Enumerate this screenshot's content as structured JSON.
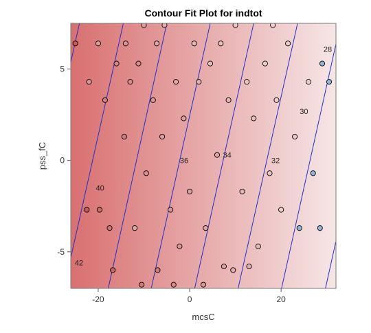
{
  "chart_data": {
    "type": "scatter",
    "subtype": "contour-fit",
    "title": "Contour Fit Plot for indtot",
    "xlabel": "mcsC",
    "ylabel": "pss_fC",
    "xlim": [
      -26,
      32
    ],
    "ylim": [
      -7,
      7.5
    ],
    "xticks": [
      -20,
      0,
      20
    ],
    "yticks": [
      -5,
      0,
      5
    ],
    "x_tick_labels": [
      "-20",
      "0",
      "20"
    ],
    "y_tick_labels": [
      "-5",
      "0",
      "5"
    ],
    "surface_gradient": {
      "low_color": "#d97070",
      "high_color": "#f6e6e6",
      "direction": "increasing mcsC"
    },
    "contour_color": "#1b2fd0",
    "contour_lines": [
      {
        "level": 42,
        "x_at_top": -24.1,
        "x_at_bottom": -37.0,
        "label": "42",
        "label_at": [
          -24.2,
          -5.6
        ]
      },
      {
        "level": 40,
        "x_at_top": -14.5,
        "x_at_bottom": -27.5,
        "label": "40",
        "label_at": [
          -19.6,
          -1.5
        ]
      },
      {
        "level": 38,
        "x_at_top": -5.0,
        "x_at_bottom": -17.8,
        "label": "",
        "label_at": null
      },
      {
        "level": 36,
        "x_at_top": 4.5,
        "x_at_bottom": -8.4,
        "label": "36",
        "label_at": [
          -1.2,
          0.0
        ]
      },
      {
        "level": 34,
        "x_at_top": 14.0,
        "x_at_bottom": 1.1,
        "label": "34",
        "label_at": [
          8.2,
          0.3
        ]
      },
      {
        "level": 32,
        "x_at_top": 23.6,
        "x_at_bottom": 10.6,
        "label": "32",
        "label_at": [
          18.8,
          0.0
        ]
      },
      {
        "level": 30,
        "x_at_top": 33.0,
        "x_at_bottom": 20.1,
        "label": "30",
        "label_at": [
          25.0,
          2.7
        ]
      },
      {
        "level": 28,
        "x_at_top": 42.6,
        "x_at_bottom": 29.7,
        "label": "28",
        "label_at": [
          30.2,
          6.1
        ]
      }
    ],
    "point_style": {
      "marker": "circle",
      "fill_colormap": "response",
      "stroke": "#000000"
    },
    "observations": [
      {
        "x": -22,
        "y": 4.3,
        "v": 37
      },
      {
        "x": -25,
        "y": 6.4,
        "v": 44
      },
      {
        "x": -22.5,
        "y": -2.7,
        "v": 44
      },
      {
        "x": -19.7,
        "y": -2.7,
        "v": 42
      },
      {
        "x": -18.5,
        "y": 3.3,
        "v": 40
      },
      {
        "x": -16,
        "y": 5.3,
        "v": 39
      },
      {
        "x": -14,
        "y": 6.4,
        "v": 37
      },
      {
        "x": -14.3,
        "y": 1.3,
        "v": 40
      },
      {
        "x": -13,
        "y": 4.3,
        "v": 38
      },
      {
        "x": -12,
        "y": -3.7,
        "v": 35
      },
      {
        "x": -11.2,
        "y": 5.3,
        "v": 38
      },
      {
        "x": -10,
        "y": 7.4,
        "v": 36
      },
      {
        "x": -9.5,
        "y": -0.7,
        "v": 38
      },
      {
        "x": -8,
        "y": 3.3,
        "v": 37
      },
      {
        "x": -7,
        "y": -6.0,
        "v": 40
      },
      {
        "x": -6,
        "y": 1.3,
        "v": 36
      },
      {
        "x": -5.5,
        "y": 7.4,
        "v": 34
      },
      {
        "x": -4.2,
        "y": -2.7,
        "v": 37
      },
      {
        "x": -3,
        "y": 4.3,
        "v": 35
      },
      {
        "x": -2.2,
        "y": -4.7,
        "v": 37
      },
      {
        "x": -1.3,
        "y": 2.3,
        "v": 36
      },
      {
        "x": 0,
        "y": -1.7,
        "v": 36
      },
      {
        "x": 1,
        "y": 6.4,
        "v": 33
      },
      {
        "x": 2,
        "y": 4.3,
        "v": 34
      },
      {
        "x": 3.5,
        "y": -3.7,
        "v": 35
      },
      {
        "x": 4.5,
        "y": 5.3,
        "v": 32
      },
      {
        "x": 6,
        "y": 0.3,
        "v": 35
      },
      {
        "x": 7.5,
        "y": -5.8,
        "v": 36
      },
      {
        "x": 8.5,
        "y": 3.3,
        "v": 33
      },
      {
        "x": 10,
        "y": 7.4,
        "v": 31
      },
      {
        "x": 11.5,
        "y": -1.7,
        "v": 33
      },
      {
        "x": 12.5,
        "y": 4.3,
        "v": 31
      },
      {
        "x": 14,
        "y": 2.3,
        "v": 32
      },
      {
        "x": 15,
        "y": -4.7,
        "v": 33
      },
      {
        "x": 16.5,
        "y": 5.3,
        "v": 30
      },
      {
        "x": 17.5,
        "y": -0.7,
        "v": 31
      },
      {
        "x": 19,
        "y": 3.3,
        "v": 30
      },
      {
        "x": 20,
        "y": -2.7,
        "v": 30
      },
      {
        "x": 21.5,
        "y": 6.4,
        "v": 30
      },
      {
        "x": 23,
        "y": 1.3,
        "v": 31
      },
      {
        "x": 24,
        "y": -3.7,
        "v": 29
      },
      {
        "x": 26,
        "y": 4.3,
        "v": 30
      },
      {
        "x": 27,
        "y": -0.7,
        "v": 29
      },
      {
        "x": 28.5,
        "y": -3.7,
        "v": 27
      },
      {
        "x": 29,
        "y": 5.3,
        "v": 28
      },
      {
        "x": 30.5,
        "y": 4.3,
        "v": 29
      },
      {
        "x": -16.8,
        "y": -6.0,
        "v": 43
      },
      {
        "x": -20,
        "y": 6.4,
        "v": 36
      },
      {
        "x": -17.5,
        "y": -3.7,
        "v": 41
      },
      {
        "x": -10.5,
        "y": -6.8,
        "v": 40
      },
      {
        "x": -3.5,
        "y": -6.8,
        "v": 38
      },
      {
        "x": 3,
        "y": -6.8,
        "v": 37
      },
      {
        "x": 9.5,
        "y": -6.0,
        "v": 34
      },
      {
        "x": 13,
        "y": -5.8,
        "v": 34
      },
      {
        "x": -7.2,
        "y": 6.4,
        "v": 35
      },
      {
        "x": 6.8,
        "y": 6.4,
        "v": 32
      },
      {
        "x": 18.2,
        "y": 7.4,
        "v": 30
      }
    ]
  }
}
